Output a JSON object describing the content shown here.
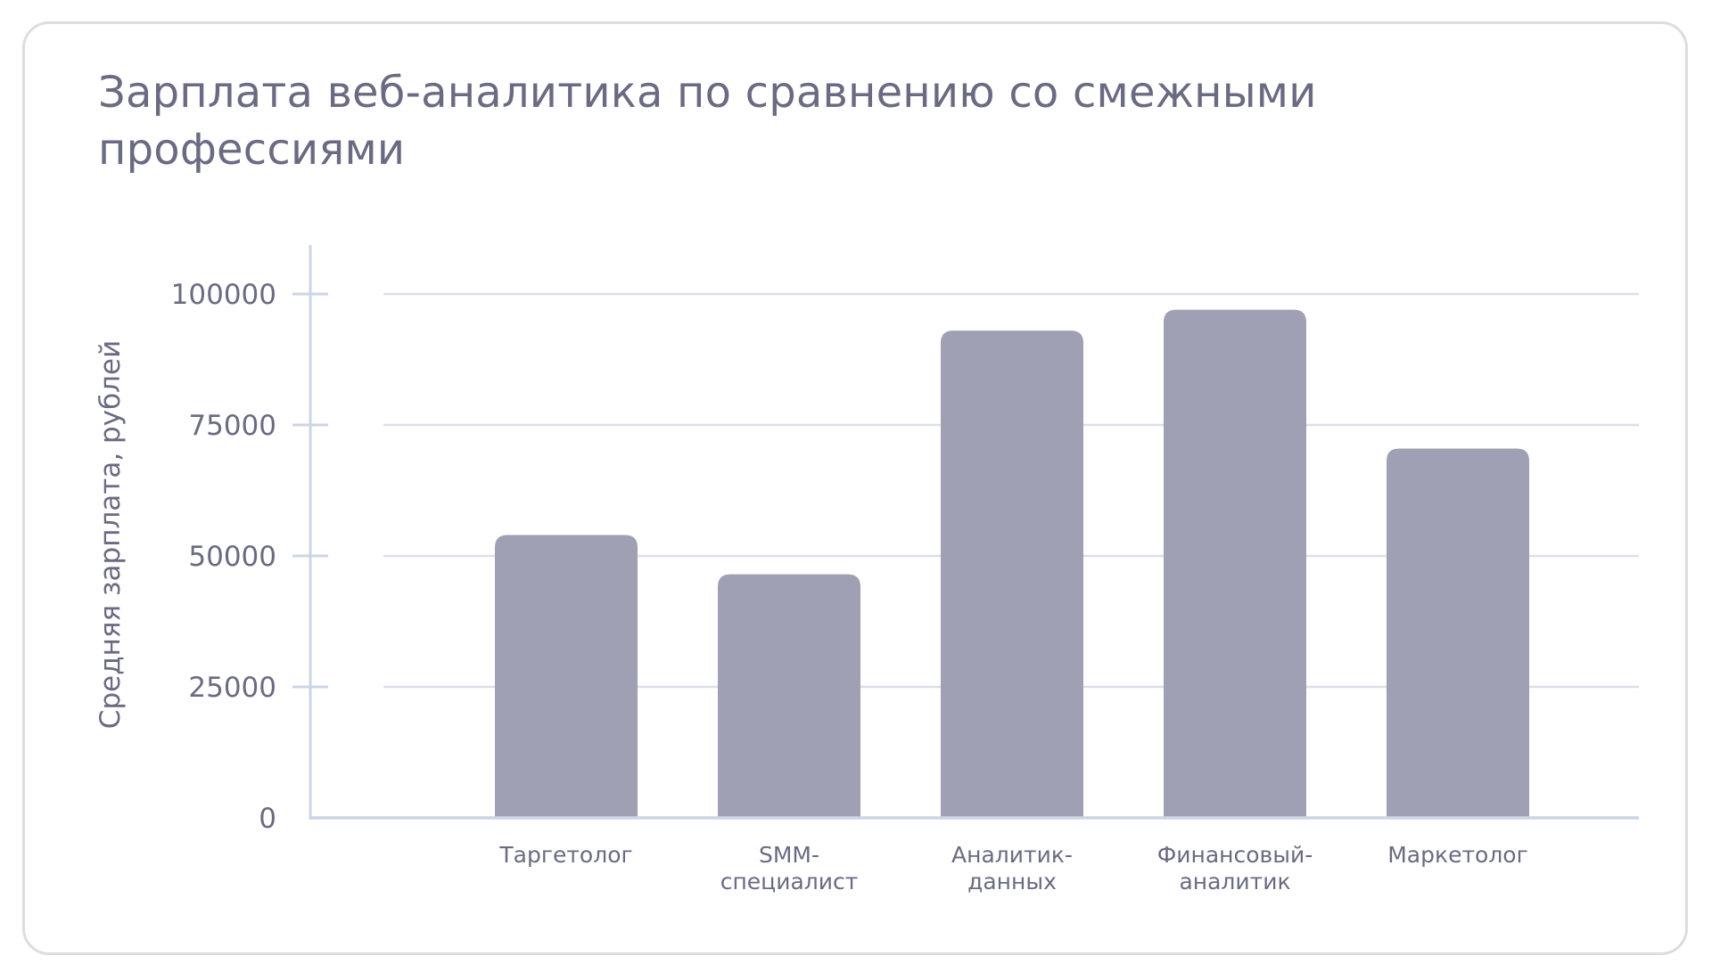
{
  "chart_data": {
    "type": "bar",
    "title": "Зарплата веб-аналитика по сравнению со смежными профессиями",
    "xlabel": "",
    "ylabel": "Средняя зарплата, рублей",
    "categories": [
      [
        "Таргетолог"
      ],
      [
        "SMM-",
        "специалист"
      ],
      [
        "Аналитик-",
        "данных"
      ],
      [
        "Финансовый-",
        "аналитик"
      ],
      [
        "Маркетолог"
      ]
    ],
    "values": [
      54000,
      46500,
      93000,
      97000,
      70500
    ],
    "yticks": [
      "0",
      "25000",
      "50000",
      "75000",
      "100000"
    ],
    "ytick_values": [
      0,
      25000,
      50000,
      75000,
      100000
    ],
    "ylim": [
      0,
      110000
    ],
    "grid": true,
    "colors": {
      "bar": "#9fa0b3",
      "grid": "#dcdfe6",
      "axis": "#ccd5e6",
      "text": "#6a6b82"
    }
  }
}
